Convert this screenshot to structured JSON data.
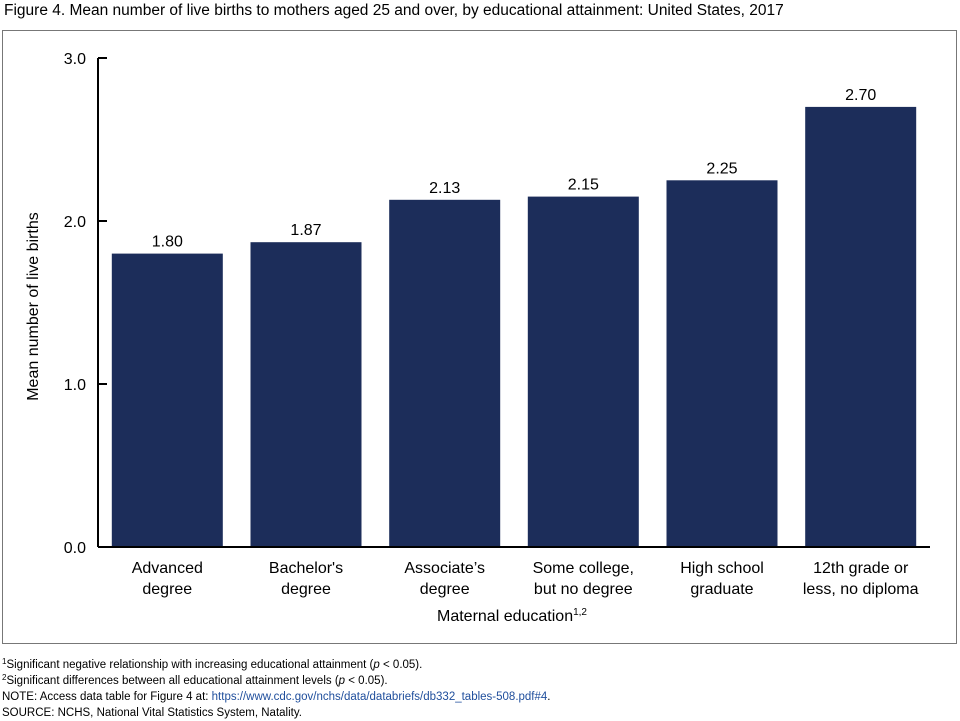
{
  "figure_title": "Figure 4. Mean number of live births to mothers aged 25 and over, by educational attainment: United States, 2017",
  "chart_data": {
    "type": "bar",
    "title": "Figure 4. Mean number of live births to mothers aged 25 and over, by educational attainment: United States, 2017",
    "categories": [
      [
        "Advanced",
        "degree"
      ],
      [
        "Bachelor's",
        "degree"
      ],
      [
        "Associate’s",
        "degree"
      ],
      [
        "Some college,",
        "but no degree"
      ],
      [
        "High school",
        "graduate"
      ],
      [
        "12th grade or",
        "less, no diploma"
      ]
    ],
    "values": [
      1.8,
      1.87,
      2.13,
      2.15,
      2.25,
      2.7
    ],
    "value_labels": [
      "1.80",
      "1.87",
      "2.13",
      "2.15",
      "2.25",
      "2.70"
    ],
    "ylabel": "Mean number of live births",
    "xlabel": "Maternal education",
    "xlabel_superscript": "1,2",
    "ylim": [
      0,
      3
    ],
    "yticks": [
      0,
      1,
      2,
      3
    ],
    "ytick_labels": [
      "0.0",
      "1.0",
      "2.0",
      "3.0"
    ],
    "grid": false,
    "bar_color": "#1c2d5a"
  },
  "notes": {
    "fn1_sup": "1",
    "fn1_a": "Significant negative relationship with increasing educational attainment (",
    "fn1_p": "p",
    "fn1_b": " < 0.05).",
    "fn2_sup": "2",
    "fn2_a": "Significant differences between all educational attainment levels (",
    "fn2_p": "p",
    "fn2_b": " < 0.05).",
    "note_prefix": "NOTE: Access data table for Figure 4 at: ",
    "note_link": "https://www.cdc.gov/nchs/data/databriefs/db332_tables-508.pdf#4",
    "note_suffix": ".",
    "source": "SOURCE: NCHS, National Vital Statistics System, Natality."
  }
}
